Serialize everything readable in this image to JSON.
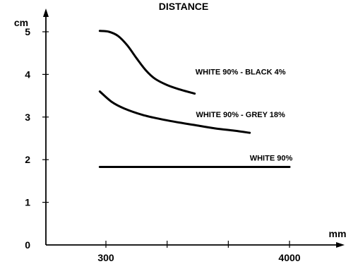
{
  "chart_data": {
    "type": "line",
    "title": "DISTANCE",
    "ylabel": "cm",
    "xlabel": "mm",
    "ylim": [
      0,
      5.5
    ],
    "yticks": [
      "0",
      "1",
      "2",
      "3",
      "4",
      "5"
    ],
    "xticks": [
      "300",
      "",
      "",
      "4000"
    ],
    "xtick_positions": [
      0,
      1,
      2,
      3
    ],
    "xlim": [
      -0.9,
      3.8
    ],
    "grid": false,
    "series": [
      {
        "name": "WHITE 90% - BLACK 4%",
        "x": [
          -0.1,
          0.05,
          0.2,
          0.35,
          0.5,
          0.65,
          0.8,
          1.0,
          1.2,
          1.45
        ],
        "y": [
          5.02,
          5.0,
          4.9,
          4.68,
          4.38,
          4.1,
          3.9,
          3.75,
          3.65,
          3.55
        ]
      },
      {
        "name": "WHITE 90% - GREY 18%",
        "x": [
          -0.1,
          0.1,
          0.3,
          0.6,
          0.9,
          1.2,
          1.5,
          1.8,
          2.1,
          2.35
        ],
        "y": [
          3.6,
          3.35,
          3.2,
          3.05,
          2.95,
          2.87,
          2.8,
          2.73,
          2.68,
          2.63
        ]
      },
      {
        "name": "WHITE 90%",
        "x": [
          -0.1,
          3.0
        ],
        "y": [
          1.83,
          1.83
        ]
      }
    ],
    "annotations": [
      {
        "text": "WHITE 90% - BLACK 4%",
        "x": 2.2,
        "y": 4.0
      },
      {
        "text": "WHITE 90% - GREY 18%",
        "x": 2.2,
        "y": 3.0
      },
      {
        "text": "WHITE 90%",
        "x": 2.7,
        "y": 1.98
      }
    ]
  }
}
